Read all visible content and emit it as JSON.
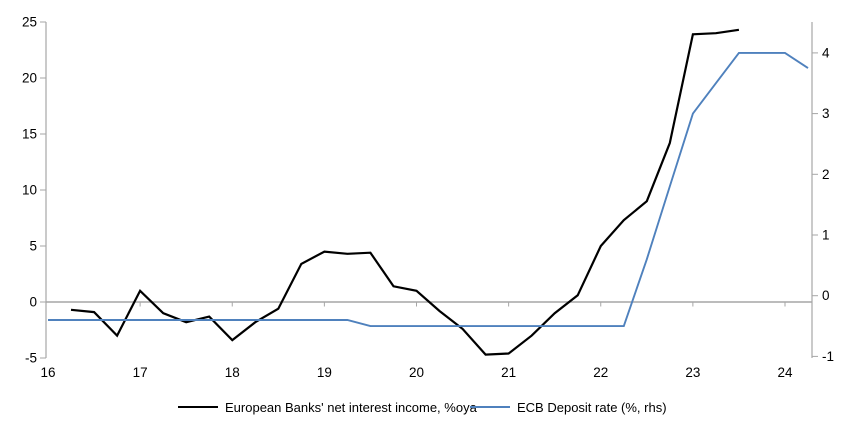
{
  "chart_data": {
    "type": "line",
    "title": "",
    "x_axis": {
      "tick_values": [
        16,
        17,
        18,
        19,
        20,
        21,
        22,
        23,
        24
      ],
      "tick_labels": [
        "16",
        "17",
        "18",
        "19",
        "20",
        "21",
        "22",
        "23",
        "24"
      ],
      "range": [
        16,
        24.3
      ],
      "frequency": "quarterly"
    },
    "y_axis_left": {
      "tick_values": [
        25,
        20,
        15,
        10,
        5,
        0,
        -5
      ],
      "range": [
        -5,
        25
      ]
    },
    "y_axis_right": {
      "tick_values": [
        4,
        3,
        2,
        1,
        0,
        -1
      ],
      "range": [
        -1.05,
        4.55
      ]
    },
    "gridlines": "zero-line-only",
    "legend_position": "bottom-center",
    "colors": {
      "axis": "#a6a6a6",
      "zero_line": "#a6a6a6",
      "tick_text": "#000000"
    },
    "series": [
      {
        "name": "European Banks' net interest income, %oya",
        "type": "line",
        "axis": "left",
        "color": "#000000",
        "stroke_width": 2.2,
        "points": [
          [
            16.25,
            -0.7
          ],
          [
            16.5,
            -0.9
          ],
          [
            16.75,
            -3
          ],
          [
            17,
            1
          ],
          [
            17.25,
            -1
          ],
          [
            17.5,
            -1.8
          ],
          [
            17.75,
            -1.3
          ],
          [
            18,
            -3.4
          ],
          [
            18.25,
            -1.8
          ],
          [
            18.5,
            -0.6
          ],
          [
            18.75,
            3.4
          ],
          [
            19,
            4.5
          ],
          [
            19.25,
            4.3
          ],
          [
            19.5,
            4.4
          ],
          [
            19.75,
            1.4
          ],
          [
            20,
            1
          ],
          [
            20.25,
            -0.8
          ],
          [
            20.5,
            -2.4
          ],
          [
            20.75,
            -4.7
          ],
          [
            21,
            -4.6
          ],
          [
            21.25,
            -3
          ],
          [
            21.5,
            -1
          ],
          [
            21.75,
            0.6
          ],
          [
            22,
            5
          ],
          [
            22.25,
            7.3
          ],
          [
            22.5,
            9
          ],
          [
            22.75,
            14.2
          ],
          [
            23,
            23.9
          ],
          [
            23.25,
            24
          ],
          [
            23.5,
            24.3
          ]
        ]
      },
      {
        "name": "ECB Deposit rate (%, rhs)",
        "type": "line",
        "axis": "right",
        "color": "#4f81bd",
        "stroke_width": 1.9,
        "points": [
          [
            16,
            -0.4
          ],
          [
            16.25,
            -0.4
          ],
          [
            16.5,
            -0.4
          ],
          [
            16.75,
            -0.4
          ],
          [
            17,
            -0.4
          ],
          [
            17.25,
            -0.4
          ],
          [
            17.5,
            -0.4
          ],
          [
            17.75,
            -0.4
          ],
          [
            18,
            -0.4
          ],
          [
            18.25,
            -0.4
          ],
          [
            18.5,
            -0.4
          ],
          [
            18.75,
            -0.4
          ],
          [
            19,
            -0.4
          ],
          [
            19.25,
            -0.4
          ],
          [
            19.5,
            -0.5
          ],
          [
            19.75,
            -0.5
          ],
          [
            20,
            -0.5
          ],
          [
            20.25,
            -0.5
          ],
          [
            20.5,
            -0.5
          ],
          [
            20.75,
            -0.5
          ],
          [
            21,
            -0.5
          ],
          [
            21.25,
            -0.5
          ],
          [
            21.5,
            -0.5
          ],
          [
            21.75,
            -0.5
          ],
          [
            22,
            -0.5
          ],
          [
            22.25,
            -0.5
          ],
          [
            22.5,
            0.6
          ],
          [
            22.75,
            1.8
          ],
          [
            23,
            3
          ],
          [
            23.25,
            3.5
          ],
          [
            23.5,
            4
          ],
          [
            23.75,
            4
          ],
          [
            24,
            4
          ],
          [
            24.25,
            3.75
          ]
        ]
      }
    ]
  }
}
